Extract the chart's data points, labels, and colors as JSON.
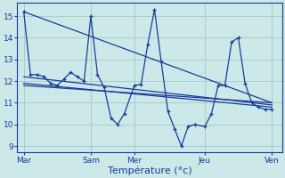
{
  "background_color": "#cce8e8",
  "grid_color": "#aacccc",
  "line_color": "#1a3a9c",
  "xlabel": "Température (°c)",
  "ylim_bottom": 8.7,
  "ylim_top": 15.6,
  "yticks": [
    9,
    10,
    11,
    12,
    13,
    14,
    15
  ],
  "x_tick_labels": [
    "Mar",
    "Sam",
    "Mer",
    "Jeu",
    "Ven"
  ],
  "x_tick_positions": [
    0,
    40,
    66,
    108,
    148
  ],
  "xlim_left": -4,
  "xlim_right": 154,
  "main_x": [
    0,
    4,
    8,
    12,
    16,
    20,
    24,
    28,
    32,
    36,
    40,
    44,
    48,
    52,
    56,
    60,
    66,
    70,
    74,
    78,
    82,
    86,
    90,
    94,
    98,
    102,
    108,
    112,
    116,
    120,
    124,
    128,
    132,
    136,
    140,
    144,
    148
  ],
  "main_y": [
    15.2,
    12.3,
    12.3,
    12.2,
    11.9,
    11.8,
    12.1,
    12.4,
    12.2,
    12.0,
    15.0,
    12.3,
    11.7,
    10.3,
    10.0,
    10.5,
    11.8,
    11.85,
    13.7,
    15.3,
    12.9,
    10.6,
    9.8,
    9.0,
    9.9,
    10.0,
    9.9,
    10.5,
    11.8,
    11.8,
    13.8,
    14.0,
    11.9,
    11.0,
    10.8,
    10.7,
    10.7
  ],
  "trend_lines": [
    {
      "x": [
        0,
        148
      ],
      "y": [
        15.2,
        11.0
      ]
    },
    {
      "x": [
        0,
        148
      ],
      "y": [
        12.2,
        10.9
      ]
    },
    {
      "x": [
        0,
        148
      ],
      "y": [
        11.9,
        10.8
      ]
    },
    {
      "x": [
        0,
        148
      ],
      "y": [
        11.8,
        11.0
      ]
    }
  ],
  "label_fontsize": 8,
  "tick_fontsize": 6.5
}
